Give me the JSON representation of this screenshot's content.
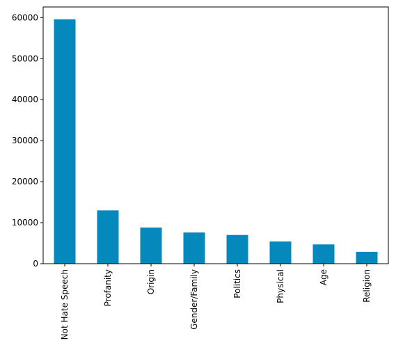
{
  "chart_data": {
    "type": "bar",
    "title": "",
    "xlabel": "",
    "ylabel": "",
    "categories": [
      "Not Hate Speech",
      "Profanity",
      "Origin",
      "Gender/Family",
      "Politics",
      "Physical",
      "Age",
      "Religion"
    ],
    "values": [
      59600,
      13000,
      8800,
      7600,
      7000,
      5400,
      4700,
      2900
    ],
    "ylim": [
      0,
      62600
    ],
    "yticks": [
      0,
      10000,
      20000,
      30000,
      40000,
      50000,
      60000
    ],
    "ytick_labels": [
      "0",
      "10000",
      "20000",
      "30000",
      "40000",
      "50000",
      "60000"
    ],
    "bar_color": "#0589bc",
    "grid": false,
    "legend": "none"
  }
}
